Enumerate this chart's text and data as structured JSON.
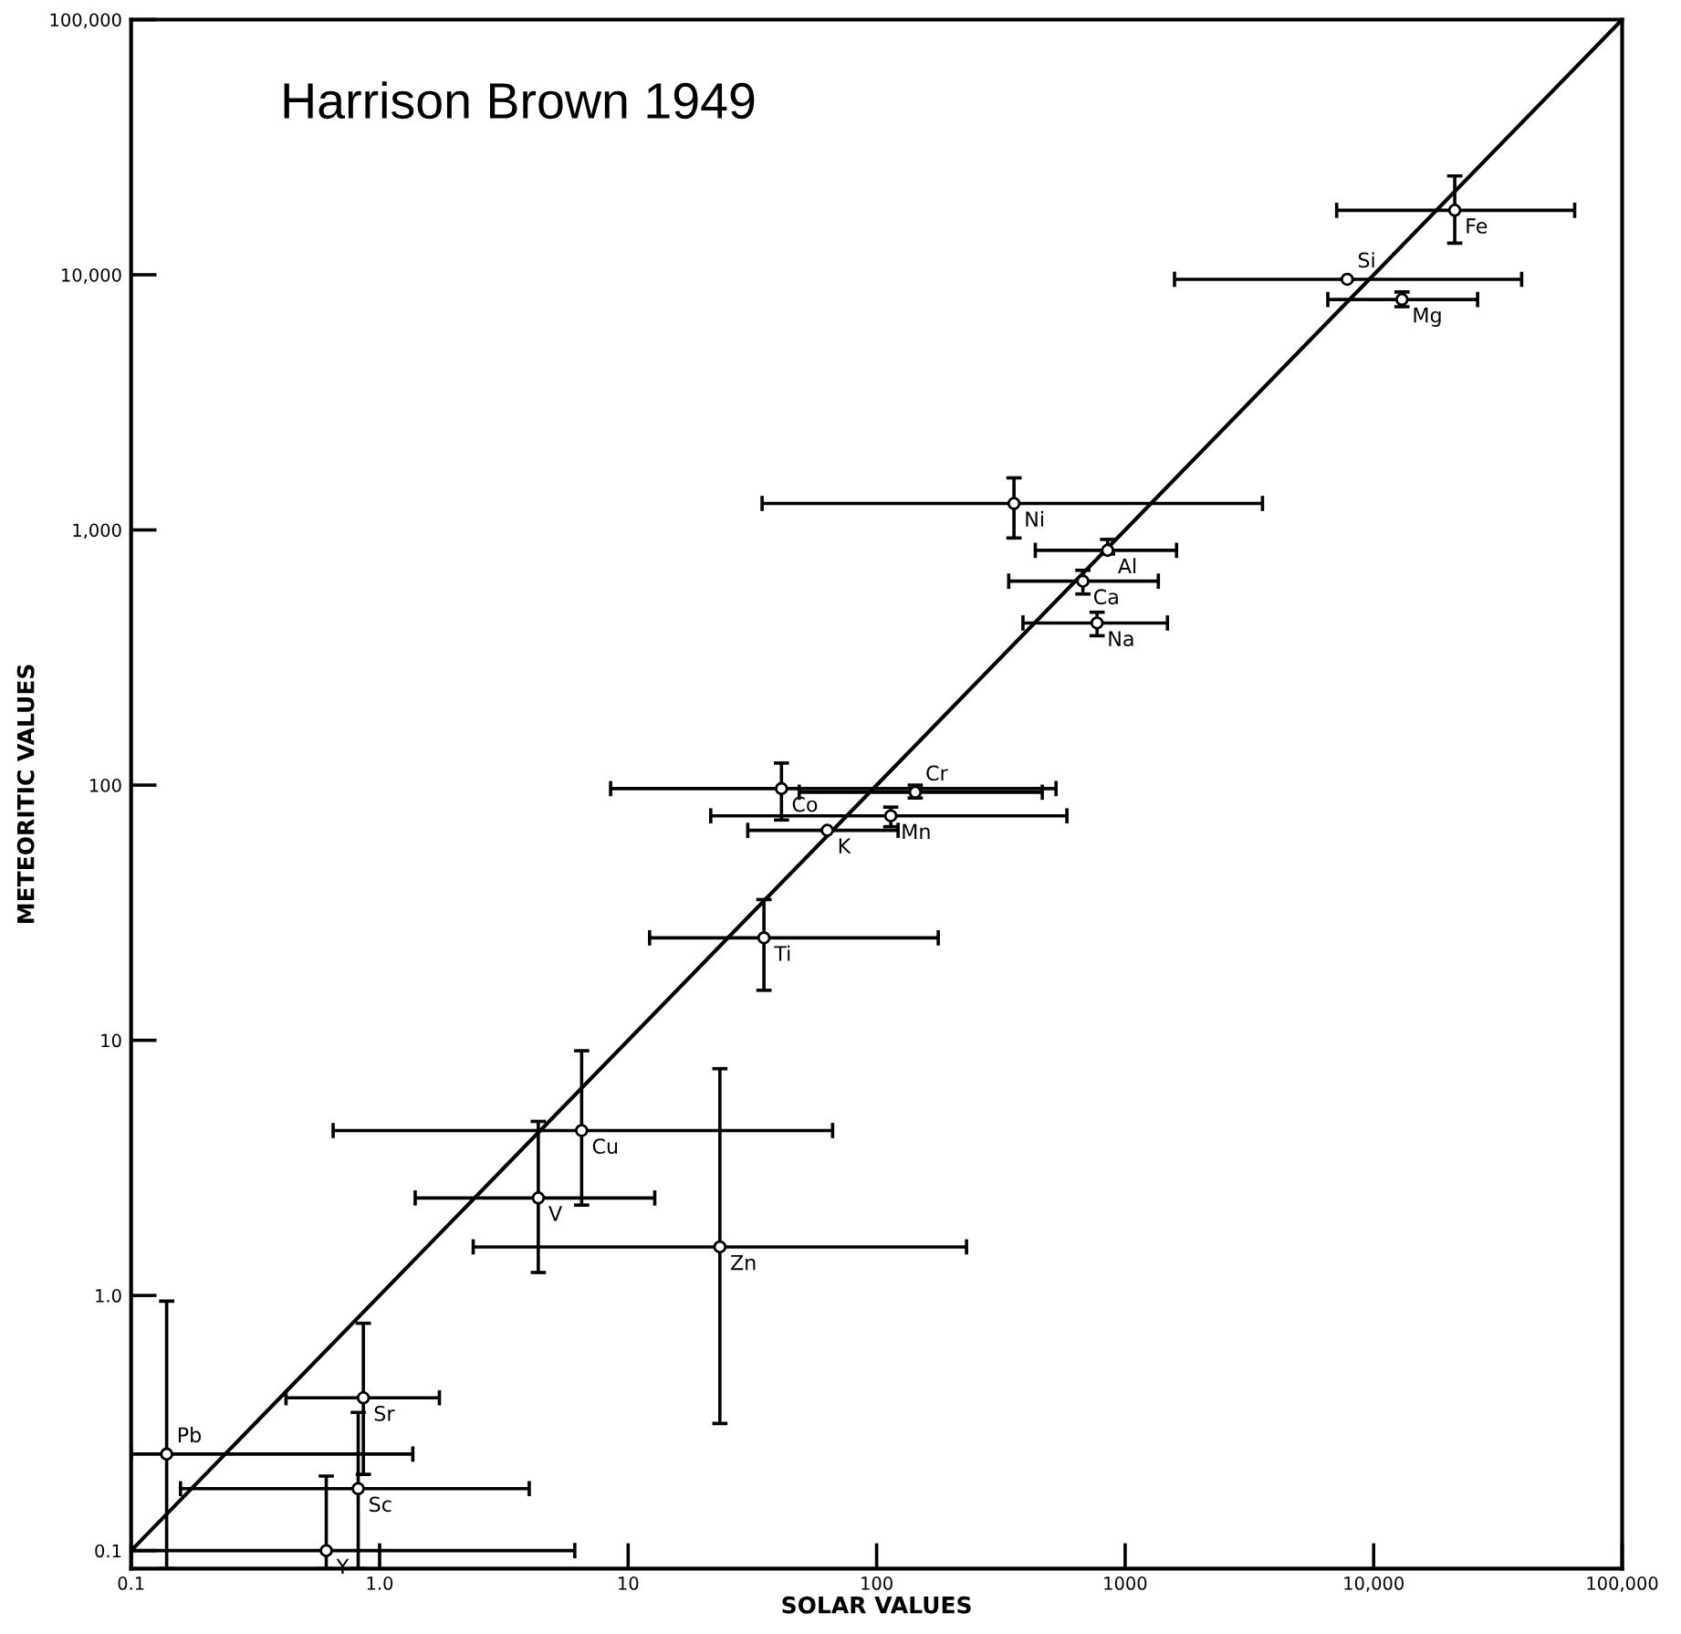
{
  "chart_data": {
    "type": "scatter",
    "title": "Harrison Brown 1949",
    "xlabel": "SOLAR VALUES",
    "ylabel": "METEORITIC VALUES",
    "log": "xy",
    "grid": false,
    "xlim": [
      0.1,
      100000
    ],
    "ylim": [
      0.085,
      100000
    ],
    "xticks": [
      0.1,
      {
        "value": 1,
        "label": "1.0"
      },
      10,
      100,
      1000,
      {
        "value": 10000,
        "label": "10,000"
      },
      {
        "value": 100000,
        "label": "100,000"
      }
    ],
    "yticks": [
      0.1,
      {
        "value": 1,
        "label": "1.0"
      },
      10,
      100,
      {
        "value": 1000,
        "label": "1,000"
      },
      {
        "value": 10000,
        "label": "10,000"
      },
      {
        "value": 100000,
        "label": "100,000"
      }
    ],
    "series": [
      {
        "color": "#000000",
        "marker": "circle",
        "x": [
          21200,
          7830,
          13000,
          357,
          850,
          676,
          771,
          41.4,
          143,
          63.3,
          114,
          35.2,
          6.5,
          4.35,
          23.4,
          0.86,
          0.82,
          0.139,
          0.61
        ],
        "values": [
          17900,
          9600,
          8000,
          1270,
          832,
          630,
          432,
          96.9,
          93.8,
          66.5,
          75.8,
          25.2,
          4.43,
          2.41,
          1.55,
          0.397,
          0.175,
          0.239,
          0.1
        ],
        "xerrors": [
          [
            7100,
            64400
          ],
          [
            1580,
            39400
          ],
          [
            6540,
            26200
          ],
          [
            34.6,
            3570
          ],
          [
            435,
            1610
          ],
          [
            340,
            1360
          ],
          [
            388,
            1480
          ],
          [
            8.5,
            527
          ],
          [
            48.8,
            464
          ],
          [
            30.3,
            122
          ],
          [
            21.5,
            583
          ],
          [
            12.2,
            177
          ],
          [
            0.65,
            66.5
          ],
          [
            1.39,
            12.8
          ],
          [
            2.38,
            230
          ],
          [
            0.42,
            1.74
          ],
          [
            0.158,
            4.0
          ],
          [
            0.1,
            1.36
          ],
          [
            0.1,
            6.1
          ]
        ],
        "errors": [
          [
            13300,
            24400
          ],
          null,
          [
            7500,
            8560
          ],
          [
            930,
            1600
          ],
          [
            805,
            918
          ],
          [
            561,
            695
          ],
          [
            385,
            476
          ],
          [
            73,
            122
          ],
          [
            89,
            100
          ],
          null,
          [
            68.7,
            82
          ],
          [
            15.7,
            35.6
          ],
          [
            2.26,
            9.1
          ],
          [
            1.23,
            4.81
          ],
          [
            0.315,
            7.74
          ],
          [
            0.199,
            0.778
          ],
          [
            0.085,
            0.348
          ],
          [
            0.085,
            0.95
          ],
          [
            0.085,
            0.196
          ]
        ]
      },
      {
        "type": "line",
        "color": "#000000",
        "x": [
          0.1,
          100000
        ],
        "values": [
          0.1,
          100000
        ]
      }
    ],
    "annotations": [
      {
        "text": "Fe",
        "x": 21200,
        "y": 17900
      },
      {
        "text": "Si",
        "x": 7830,
        "y": 9600
      },
      {
        "text": "Mg",
        "x": 13000,
        "y": 8000
      },
      {
        "text": "Ni",
        "x": 357,
        "y": 1270
      },
      {
        "text": "Al",
        "x": 850,
        "y": 832
      },
      {
        "text": "Ca",
        "x": 676,
        "y": 630
      },
      {
        "text": "Na",
        "x": 771,
        "y": 432
      },
      {
        "text": "Co",
        "x": 41.4,
        "y": 96.9
      },
      {
        "text": "Cr",
        "x": 143,
        "y": 93.8
      },
      {
        "text": "K",
        "x": 63.3,
        "y": 66.5
      },
      {
        "text": "Mn",
        "x": 114,
        "y": 75.8
      },
      {
        "text": "Ti",
        "x": 35.2,
        "y": 25.2
      },
      {
        "text": "Cu",
        "x": 6.5,
        "y": 4.43
      },
      {
        "text": "V",
        "x": 4.35,
        "y": 2.41
      },
      {
        "text": "Zn",
        "x": 23.4,
        "y": 1.55
      },
      {
        "text": "Sr",
        "x": 0.86,
        "y": 0.397
      },
      {
        "text": "Sc",
        "x": 0.82,
        "y": 0.175
      },
      {
        "text": "Pb",
        "x": 0.139,
        "y": 0.239
      },
      {
        "text": "Y",
        "x": 0.61,
        "y": 0.1
      }
    ]
  }
}
